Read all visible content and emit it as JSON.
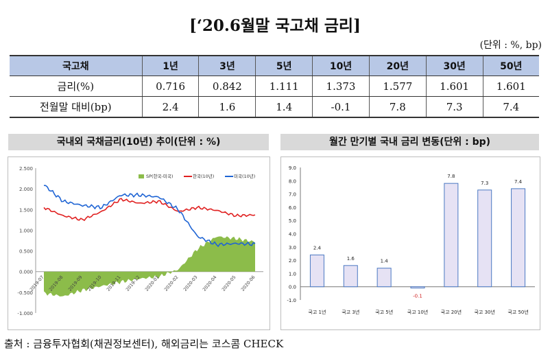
{
  "title": "[‘20.6월말 국고채 금리]",
  "unit": "(단위 : %, bp)",
  "table": {
    "headers": [
      "국고채",
      "1년",
      "3년",
      "5년",
      "10년",
      "20년",
      "30년",
      "50년"
    ],
    "rows": [
      {
        "label": "금리(%)",
        "values": [
          "0.716",
          "0.842",
          "1.111",
          "1.373",
          "1.577",
          "1.601",
          "1.601"
        ]
      },
      {
        "label": "전월말 대비(bp)",
        "values": [
          "2.4",
          "1.6",
          "1.4",
          "-0.1",
          "7.8",
          "7.3",
          "7.4"
        ]
      }
    ]
  },
  "left_panel_title": "국내외 국채금리(10년) 추이(단위 : %)",
  "right_panel_title": "월간 만기별 국내 금리 변동(단위 : bp)",
  "source": "출처 : 금융투자협회(채권정보센터), 해외금리는 코스콤 CHECK",
  "colors": {
    "header_bg": "#b8c8e6",
    "spread": "#8cbc4a",
    "korea": "#e02020",
    "us": "#1e64d4",
    "bar_fill": "#e6e2f4",
    "bar_edge": "#4a78c2"
  },
  "chart_data": [
    {
      "type": "line",
      "ylim": [
        -1.0,
        2.5
      ],
      "yticks": [
        "2.500",
        "2.000",
        "1.500",
        "1.000",
        "0.500",
        "0.000",
        "-0.500",
        "-1.000"
      ],
      "x": [
        "2019-07",
        "2019-08",
        "2019-09",
        "2019-10",
        "2019-11",
        "2019-12",
        "2020-01",
        "2020-02",
        "2020-03",
        "2020-04",
        "2020-05",
        "2020-06"
      ],
      "series": [
        {
          "name": "SP(한국-미국)",
          "kind": "area",
          "values": [
            -0.52,
            -0.6,
            -0.45,
            -0.35,
            -0.25,
            -0.17,
            -0.12,
            0.05,
            0.55,
            0.85,
            0.8,
            0.72
          ]
        },
        {
          "name": "한국(10년)",
          "kind": "line",
          "values": [
            1.55,
            1.35,
            1.25,
            1.45,
            1.75,
            1.65,
            1.7,
            1.45,
            1.55,
            1.48,
            1.35,
            1.37
          ]
        },
        {
          "name": "미국(10년)",
          "kind": "line",
          "values": [
            2.1,
            1.7,
            1.6,
            1.55,
            1.85,
            1.85,
            1.8,
            1.5,
            0.85,
            0.65,
            0.68,
            0.66
          ]
        }
      ]
    },
    {
      "type": "bar",
      "categories": [
        "국고 1년",
        "국고 3년",
        "국고 5년",
        "국고 10년",
        "국고 20년",
        "국고 30년",
        "국고 50년"
      ],
      "values": [
        2.4,
        1.6,
        1.4,
        -0.1,
        7.8,
        7.3,
        7.4
      ],
      "labels": [
        "2.4",
        "1.6",
        "1.4",
        "-0.1",
        "7.8",
        "7.3",
        "7.4"
      ],
      "ylim": [
        -1.0,
        9.0
      ],
      "yticks": [
        "9.0",
        "8.0",
        "7.0",
        "6.0",
        "5.0",
        "4.0",
        "3.0",
        "2.0",
        "1.0",
        "0.0",
        "-1.0"
      ]
    }
  ]
}
